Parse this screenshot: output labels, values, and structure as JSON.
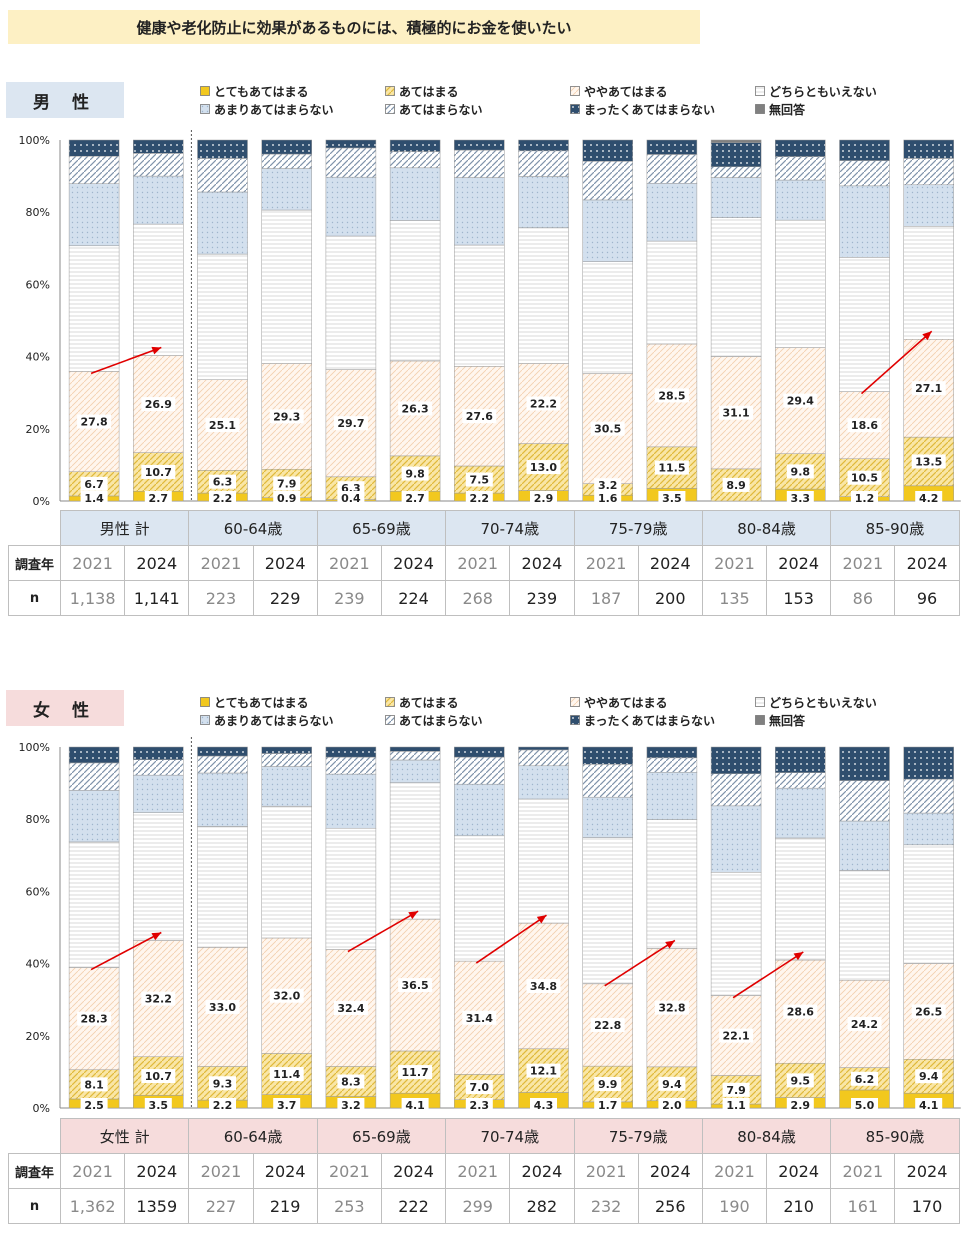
{
  "title": "健康や老化防止に効果があるものには、積極的にお金を使いたい",
  "legend": [
    {
      "label": "とてもあてはまる",
      "key": "s1"
    },
    {
      "label": "あてはまる",
      "key": "s2"
    },
    {
      "label": "ややあてはまる",
      "key": "s3"
    },
    {
      "label": "どちらともいえない",
      "key": "s4"
    },
    {
      "label": "あまりあてはまらない",
      "key": "s5"
    },
    {
      "label": "あてはまらない",
      "key": "s6"
    },
    {
      "label": "まったくあてはまらない",
      "key": "s7"
    },
    {
      "label": "無回答",
      "key": "s8"
    }
  ],
  "colors": {
    "s1": "#f2c81e",
    "s2": "#f7e19a",
    "s3": "#fdeee0",
    "s4": "#f5f5f5",
    "s5": "#cfdceb",
    "s6": "#e0e6ee",
    "s7": "#2f4e6e",
    "s8": "#808080",
    "male_box": "#dce6f1",
    "female_box": "#f6dcdc",
    "arrow": "#e00000"
  },
  "y_ticks": [
    "0%",
    "20%",
    "40%",
    "60%",
    "80%",
    "100%"
  ],
  "table_labels": {
    "year": "調査年",
    "n": "n"
  },
  "chart_data": [
    {
      "type": "bar",
      "stacked": true,
      "gender": "男 性",
      "groups": [
        "男性 計",
        "60-64歳",
        "65-69歳",
        "70-74歳",
        "75-79歳",
        "80-84歳",
        "85-90歳"
      ],
      "years": [
        "2021",
        "2024",
        "2021",
        "2024",
        "2021",
        "2024",
        "2021",
        "2024",
        "2021",
        "2024",
        "2021",
        "2024",
        "2021",
        "2024"
      ],
      "n": [
        "1,138",
        "1,141",
        "223",
        "229",
        "239",
        "224",
        "268",
        "239",
        "187",
        "200",
        "135",
        "153",
        "86",
        "96"
      ],
      "ylim": [
        0,
        100
      ],
      "bars": [
        {
          "s1": "1.4",
          "s2": "6.7",
          "s3": "27.8",
          "c": [
            1.4,
            6.7,
            27.8,
            34.8,
            17.2,
            7.6,
            4.5,
            0
          ]
        },
        {
          "s1": "2.7",
          "s2": "10.7",
          "s3": "26.9",
          "c": [
            2.7,
            10.7,
            26.9,
            36.4,
            13.3,
            6.3,
            3.7,
            0
          ]
        },
        {
          "s1": "2.2",
          "s2": "6.3",
          "s3": "25.1",
          "c": [
            2.2,
            6.3,
            25.1,
            34.8,
            17.2,
            9.3,
            5.1,
            0
          ]
        },
        {
          "s1": "0.9",
          "s2": "7.9",
          "s3": "29.3",
          "c": [
            0.9,
            7.9,
            29.3,
            42.5,
            11.5,
            4.0,
            3.9,
            0
          ]
        },
        {
          "s1": "0.4",
          "s2": "6.3",
          "s3": "29.7",
          "c": [
            0.4,
            6.3,
            29.7,
            37.0,
            16.3,
            8.1,
            2.2,
            0
          ]
        },
        {
          "s1": "2.7",
          "s2": "9.8",
          "s3": "26.3",
          "c": [
            2.7,
            9.8,
            26.3,
            38.9,
            14.6,
            4.5,
            3.2,
            0
          ]
        },
        {
          "s1": "2.2",
          "s2": "7.5",
          "s3": "27.6",
          "c": [
            2.2,
            7.5,
            27.6,
            33.6,
            18.7,
            7.6,
            2.8,
            0
          ]
        },
        {
          "s1": "2.9",
          "s2": "13.0",
          "s3": "22.2",
          "c": [
            2.9,
            13.0,
            22.2,
            37.6,
            14.2,
            7.1,
            3.0,
            0
          ]
        },
        {
          "s1": "1.6",
          "s2": "3.2",
          "s3": "30.5",
          "c": [
            1.6,
            3.2,
            30.5,
            31.0,
            17.1,
            10.7,
            5.9,
            0
          ]
        },
        {
          "s1": "3.5",
          "s2": "11.5",
          "s3": "28.5",
          "c": [
            3.5,
            11.5,
            28.5,
            28.5,
            16.0,
            8.0,
            4.0,
            0
          ]
        },
        {
          "s1": "",
          "s2": "8.9",
          "s3": "31.1",
          "c": [
            0,
            8.9,
            31.1,
            38.5,
            11.1,
            3.0,
            6.7,
            0.7
          ]
        },
        {
          "s1": "3.3",
          "s2": "9.8",
          "s3": "29.4",
          "c": [
            3.3,
            9.8,
            29.4,
            35.3,
            11.1,
            6.5,
            4.6,
            0
          ]
        },
        {
          "s1": "1.2",
          "s2": "10.5",
          "s3": "18.6",
          "c": [
            1.2,
            10.5,
            18.6,
            37.2,
            19.8,
            7.0,
            5.7,
            0
          ]
        },
        {
          "s1": "4.2",
          "s2": "13.5",
          "s3": "27.1",
          "c": [
            4.2,
            13.5,
            27.1,
            31.3,
            11.5,
            7.3,
            5.1,
            0
          ]
        }
      ],
      "arrows": [
        0,
        12
      ]
    },
    {
      "type": "bar",
      "stacked": true,
      "gender": "女 性",
      "groups": [
        "女性 計",
        "60-64歳",
        "65-69歳",
        "70-74歳",
        "75-79歳",
        "80-84歳",
        "85-90歳"
      ],
      "years": [
        "2021",
        "2024",
        "2021",
        "2024",
        "2021",
        "2024",
        "2021",
        "2024",
        "2021",
        "2024",
        "2021",
        "2024",
        "2021",
        "2024"
      ],
      "n": [
        "1,362",
        "1359",
        "227",
        "219",
        "253",
        "222",
        "299",
        "282",
        "232",
        "256",
        "190",
        "210",
        "161",
        "170"
      ],
      "ylim": [
        0,
        100
      ],
      "bars": [
        {
          "s1": "2.5",
          "s2": "8.1",
          "s3": "28.3",
          "c": [
            2.5,
            8.1,
            28.3,
            34.8,
            14.3,
            7.6,
            4.4,
            0
          ]
        },
        {
          "s1": "3.5",
          "s2": "10.7",
          "s3": "32.2",
          "c": [
            3.5,
            10.7,
            32.2,
            35.4,
            10.4,
            4.3,
            3.5,
            0
          ]
        },
        {
          "s1": "2.2",
          "s2": "9.3",
          "s3": "33.0",
          "c": [
            2.2,
            9.3,
            33.0,
            33.5,
            14.8,
            4.7,
            2.5,
            0
          ]
        },
        {
          "s1": "3.7",
          "s2": "11.4",
          "s3": "32.0",
          "c": [
            3.7,
            11.4,
            32.0,
            36.5,
            11.0,
            3.6,
            1.8,
            0
          ]
        },
        {
          "s1": "3.2",
          "s2": "8.3",
          "s3": "32.4",
          "c": [
            3.2,
            8.3,
            32.4,
            33.6,
            15.0,
            4.7,
            2.8,
            0
          ]
        },
        {
          "s1": "4.1",
          "s2": "11.7",
          "s3": "36.5",
          "c": [
            4.1,
            11.7,
            36.5,
            37.8,
            6.3,
            2.4,
            1.2,
            0
          ]
        },
        {
          "s1": "2.3",
          "s2": "7.0",
          "s3": "31.4",
          "c": [
            2.3,
            7.0,
            31.4,
            34.7,
            14.3,
            7.5,
            2.8,
            0
          ]
        },
        {
          "s1": "4.3",
          "s2": "12.1",
          "s3": "34.8",
          "c": [
            4.3,
            12.1,
            34.8,
            34.4,
            9.2,
            4.4,
            0.8,
            0
          ]
        },
        {
          "s1": "1.7",
          "s2": "9.9",
          "s3": "22.8",
          "c": [
            1.7,
            9.9,
            22.8,
            40.5,
            11.2,
            9.1,
            4.8,
            0
          ]
        },
        {
          "s1": "2.0",
          "s2": "9.4",
          "s3": "32.8",
          "c": [
            2.0,
            9.4,
            32.8,
            35.7,
            13.1,
            4.0,
            3.0,
            0
          ]
        },
        {
          "s1": "1.1",
          "s2": "7.9",
          "s3": "22.1",
          "c": [
            1.1,
            7.9,
            22.1,
            34.2,
            18.4,
            8.9,
            7.4,
            0
          ]
        },
        {
          "s1": "2.9",
          "s2": "9.5",
          "s3": "28.6",
          "c": [
            2.9,
            9.5,
            28.6,
            33.8,
            13.8,
            4.3,
            7.1,
            0
          ]
        },
        {
          "s1": "5.0",
          "s2": "6.2",
          "s3": "24.2",
          "c": [
            5.0,
            6.2,
            24.2,
            30.4,
            13.7,
            11.2,
            9.3,
            0
          ]
        },
        {
          "s1": "4.1",
          "s2": "9.4",
          "s3": "26.5",
          "c": [
            4.1,
            9.4,
            26.5,
            32.9,
            8.8,
            9.4,
            8.9,
            0
          ]
        }
      ],
      "arrows": [
        0,
        4,
        6,
        8,
        10
      ]
    }
  ]
}
